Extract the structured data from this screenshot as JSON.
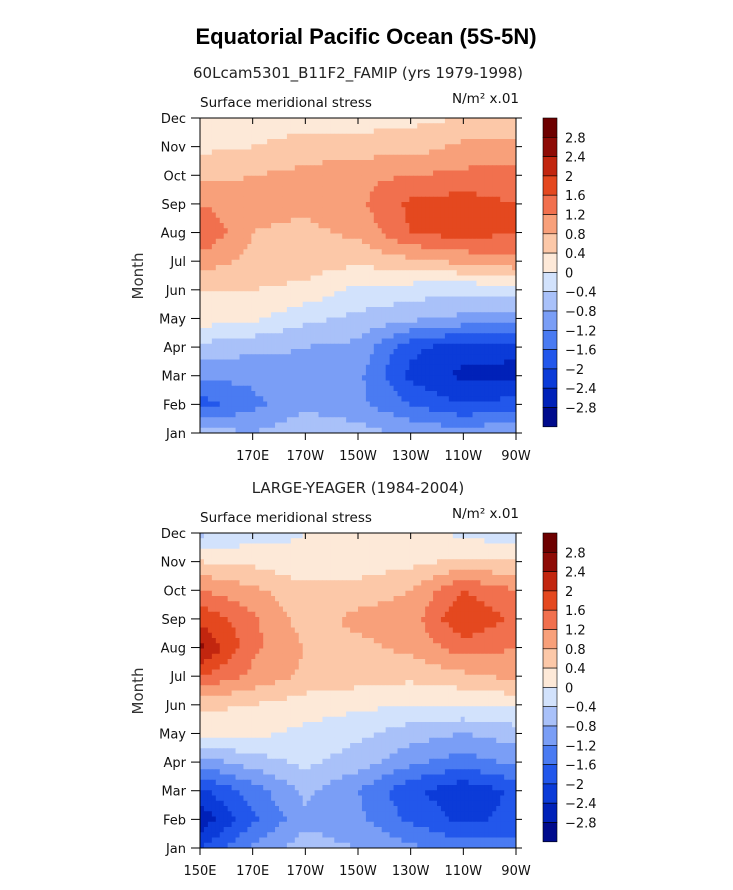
{
  "title": "Equatorial Pacific Ocean (5S-5N)",
  "chart_data": [
    {
      "type": "heatmap",
      "title": "60Lcam5301_B11F2_FAMIP (yrs 1979-1998)",
      "left_label": "Surface meridional stress",
      "right_label": "N/m² x.01",
      "ylabel": "Month",
      "xlabel": "",
      "x_ticks": [
        "170E",
        "170W",
        "150W",
        "130W",
        "110W",
        "90W"
      ],
      "x_tick_lon": [
        170,
        190,
        210,
        230,
        250,
        270
      ],
      "y_ticks": [
        "Jan",
        "Feb",
        "Mar",
        "Apr",
        "May",
        "Jun",
        "Jul",
        "Aug",
        "Sep",
        "Oct",
        "Nov",
        "Dec"
      ],
      "xlim": [
        150,
        270
      ],
      "grid_lon": [
        150,
        170,
        190,
        210,
        230,
        250,
        270
      ],
      "grid_month": [
        "Jan",
        "Feb",
        "Mar",
        "Apr",
        "May",
        "Jun",
        "Jul",
        "Aug",
        "Sep",
        "Oct",
        "Nov",
        "Dec"
      ],
      "values": [
        [
          -0.6,
          -0.8,
          -0.5,
          -0.6,
          -0.9,
          -1.0,
          -0.8
        ],
        [
          -1.8,
          -1.3,
          -0.9,
          -1.1,
          -1.6,
          -2.0,
          -1.8
        ],
        [
          -1.1,
          -1.1,
          -0.9,
          -1.1,
          -2.1,
          -2.5,
          -2.6
        ],
        [
          -0.5,
          -0.7,
          -0.8,
          -0.9,
          -1.9,
          -2.2,
          -2.2
        ],
        [
          0.2,
          0.1,
          -0.3,
          -0.5,
          -0.7,
          -0.9,
          -0.9
        ],
        [
          0.4,
          0.4,
          0.3,
          -0.1,
          -0.2,
          -0.3,
          -0.2
        ],
        [
          1.0,
          0.7,
          0.6,
          0.5,
          0.7,
          0.9,
          1.1
        ],
        [
          1.6,
          0.8,
          0.7,
          0.9,
          1.6,
          1.8,
          1.6
        ],
        [
          1.2,
          0.9,
          0.9,
          1.1,
          1.7,
          1.8,
          1.6
        ],
        [
          0.7,
          0.8,
          0.9,
          1.1,
          1.2,
          1.3,
          1.3
        ],
        [
          0.3,
          0.4,
          0.6,
          0.6,
          0.6,
          0.9,
          1.0
        ],
        [
          0.0,
          0.1,
          0.2,
          0.2,
          0.3,
          0.4,
          0.4
        ]
      ]
    },
    {
      "type": "heatmap",
      "title": "LARGE-YEAGER (1984-2004)",
      "left_label": "Surface meridional stress",
      "right_label": "N/m² x.01",
      "ylabel": "Month",
      "xlabel": "",
      "x_ticks": [
        "150E",
        "170E",
        "170W",
        "150W",
        "130W",
        "110W",
        "90W"
      ],
      "x_tick_lon": [
        150,
        170,
        190,
        210,
        230,
        250,
        270
      ],
      "y_ticks": [
        "Jan",
        "Feb",
        "Mar",
        "Apr",
        "May",
        "Jun",
        "Jul",
        "Aug",
        "Sep",
        "Oct",
        "Nov",
        "Dec"
      ],
      "xlim": [
        150,
        270
      ],
      "grid_lon": [
        150,
        170,
        190,
        210,
        230,
        250,
        270
      ],
      "grid_month": [
        "Jan",
        "Feb",
        "Mar",
        "Apr",
        "May",
        "Jun",
        "Jul",
        "Aug",
        "Sep",
        "Oct",
        "Nov",
        "Dec"
      ],
      "values": [
        [
          -2.0,
          -1.1,
          -0.6,
          -0.8,
          -1.1,
          -1.4,
          -1.4
        ],
        [
          -2.7,
          -1.7,
          -0.9,
          -1.1,
          -1.7,
          -2.1,
          -1.9
        ],
        [
          -2.1,
          -1.4,
          -0.7,
          -1.2,
          -1.9,
          -2.3,
          -1.9
        ],
        [
          -1.0,
          -0.6,
          -0.3,
          -0.6,
          -1.1,
          -1.4,
          -1.1
        ],
        [
          0.1,
          0.1,
          -0.1,
          -0.3,
          -0.6,
          -0.8,
          -0.6
        ],
        [
          0.5,
          0.4,
          0.2,
          0.1,
          0.0,
          0.0,
          0.1
        ],
        [
          1.6,
          1.1,
          0.7,
          0.6,
          0.5,
          0.7,
          0.9
        ],
        [
          2.5,
          1.3,
          0.8,
          0.7,
          0.9,
          1.4,
          1.2
        ],
        [
          1.9,
          1.3,
          0.6,
          0.9,
          1.0,
          2.0,
          1.5
        ],
        [
          1.2,
          0.9,
          0.5,
          0.6,
          0.8,
          1.6,
          1.2
        ],
        [
          0.4,
          0.3,
          0.1,
          0.1,
          0.3,
          0.5,
          0.4
        ],
        [
          -0.5,
          -0.2,
          0.0,
          0.1,
          0.2,
          -0.1,
          -0.3
        ]
      ]
    }
  ],
  "colorbar": {
    "levels": [
      -2.8,
      -2.4,
      -2.0,
      -1.6,
      -1.2,
      -0.8,
      -0.4,
      0,
      0.4,
      0.8,
      1.2,
      1.6,
      2.0,
      2.4,
      2.8
    ],
    "labels": [
      "2.8",
      "2.4",
      "2",
      "1.6",
      "1.2",
      "0.8",
      "0.4",
      "0",
      "−0.4",
      "−0.8",
      "−1.2",
      "−1.6",
      "−2",
      "−2.4",
      "−2.8"
    ],
    "colors": [
      "#000b8c",
      "#0021b8",
      "#0b3bd8",
      "#2257eb",
      "#4a7bf2",
      "#7a9ef6",
      "#a9c1f9",
      "#d2e2fc",
      "#fde9d8",
      "#fcc8a8",
      "#f8a07a",
      "#f1704e",
      "#e4481f",
      "#c2260f",
      "#8e0b06",
      "#6d0000"
    ]
  }
}
